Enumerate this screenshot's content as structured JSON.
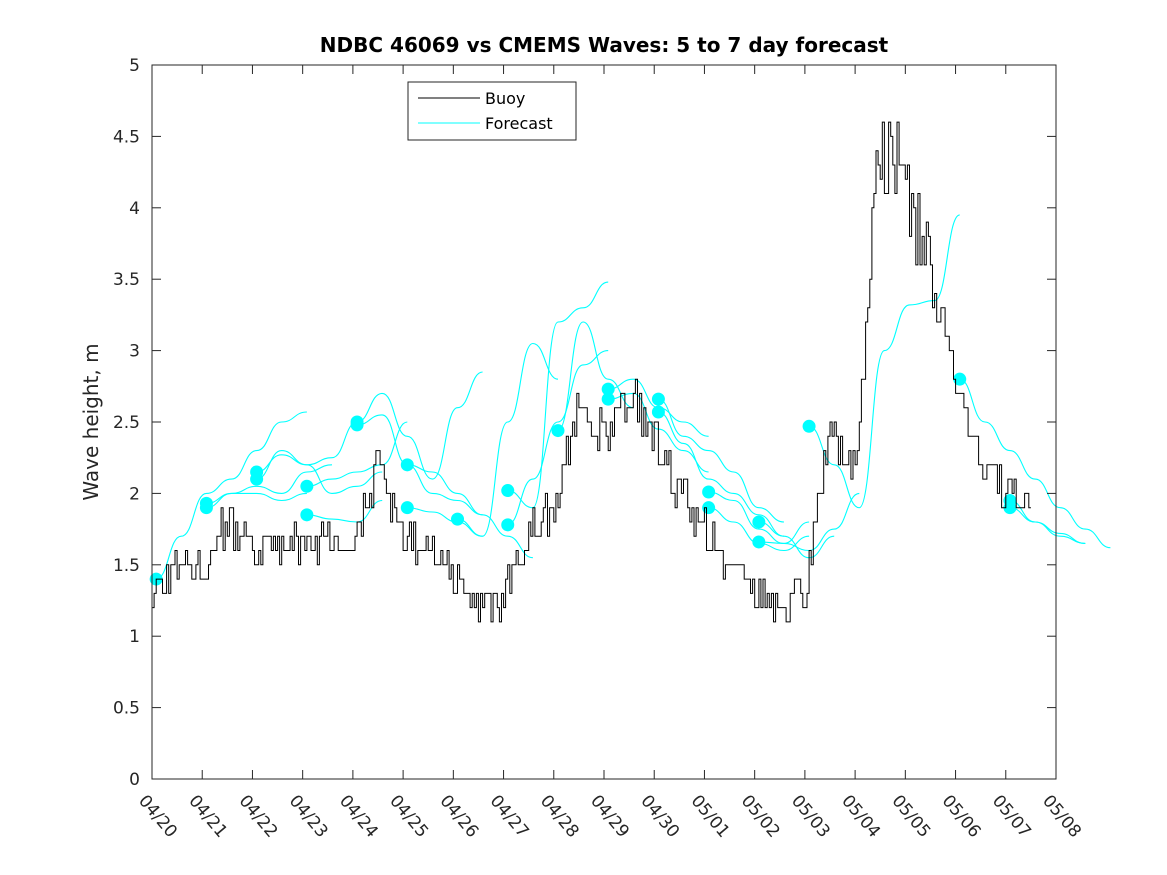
{
  "chart_data": {
    "type": "line",
    "title": "NDBC 46069 vs CMEMS Waves: 5 to 7 day forecast",
    "xlabel": "",
    "ylabel": "Wave height, m",
    "x_unit": "date (MM/DD)",
    "xlim": [
      "04/20",
      "05/08"
    ],
    "ylim": [
      0,
      5
    ],
    "x_ticks": [
      "04/20",
      "04/21",
      "04/22",
      "04/23",
      "04/24",
      "04/25",
      "04/26",
      "04/27",
      "04/28",
      "04/29",
      "04/30",
      "05/01",
      "05/02",
      "05/03",
      "05/04",
      "05/05",
      "05/06",
      "05/07",
      "05/08"
    ],
    "y_ticks": [
      "0",
      "0.5",
      "1",
      "1.5",
      "2",
      "2.5",
      "3",
      "3.5",
      "4",
      "4.5",
      "5"
    ],
    "grid": false,
    "legend": {
      "placement": "top-left",
      "entries": [
        "Buoy",
        "Forecast"
      ]
    },
    "colors": {
      "buoy": "#000000",
      "forecast": "#00ffff"
    },
    "series": [
      {
        "name": "Buoy",
        "x": [
          "04/20 00:00",
          "04/20 12:00",
          "04/21 00:00",
          "04/21 12:00",
          "04/22 00:00",
          "04/22 12:00",
          "04/23 00:00",
          "04/23 12:00",
          "04/24 00:00",
          "04/24 12:00",
          "04/25 00:00",
          "04/25 12:00",
          "04/26 00:00",
          "04/26 12:00",
          "04/27 00:00",
          "04/27 12:00",
          "04/28 00:00",
          "04/28 12:00",
          "04/29 00:00",
          "04/29 12:00",
          "04/30 00:00",
          "04/30 12:00",
          "05/01 00:00",
          "05/01 12:00",
          "05/02 00:00",
          "05/02 12:00",
          "05/03 00:00",
          "05/03 12:00",
          "05/04 00:00",
          "05/04 12:00",
          "05/05 00:00",
          "05/05 12:00",
          "05/06 00:00",
          "05/06 12:00",
          "05/07 00:00",
          "05/07 12:00"
        ],
        "y": [
          1.3,
          1.5,
          1.5,
          1.8,
          1.6,
          1.6,
          1.65,
          1.7,
          1.7,
          2.2,
          1.7,
          1.6,
          1.4,
          1.2,
          1.3,
          1.7,
          1.9,
          2.7,
          2.4,
          2.7,
          2.4,
          2.0,
          1.8,
          1.5,
          1.3,
          1.2,
          1.3,
          2.5,
          2.1,
          4.5,
          4.2,
          3.5,
          2.8,
          2.2,
          2.0,
          1.9
        ]
      },
      {
        "name": "Forecast",
        "runs": [
          {
            "start": "04/20 02:00",
            "y": [
              1.4,
              1.7,
              2.0,
              2.1,
              2.3,
              2.5,
              2.57
            ]
          },
          {
            "start": "04/21 02:00",
            "y": [
              1.9,
              2.0,
              2.05,
              2.0,
              2.15,
              2.2
            ]
          },
          {
            "start": "04/21 02:00",
            "y": [
              1.93,
              2.0,
              2.0,
              1.95,
              2.0
            ]
          },
          {
            "start": "04/22 02:00",
            "y": [
              2.1,
              2.3,
              2.2,
              2.0,
              2.05,
              2.15
            ]
          },
          {
            "start": "04/22 02:00",
            "y": [
              2.15,
              2.27,
              2.2,
              2.25,
              2.5
            ]
          },
          {
            "start": "04/23 02:00",
            "y": [
              2.05,
              2.1,
              2.15,
              2.2,
              2.5
            ]
          },
          {
            "start": "04/23 02:00",
            "y": [
              1.85,
              1.82,
              1.8,
              1.95
            ]
          },
          {
            "start": "04/24 02:00",
            "y": [
              2.5,
              2.7,
              2.4,
              2.1,
              2.6,
              2.85
            ]
          },
          {
            "start": "04/24 02:00",
            "y": [
              2.48,
              2.55,
              2.2,
              2.0,
              1.95,
              1.85
            ]
          },
          {
            "start": "04/25 02:00",
            "y": [
              2.2,
              2.15,
              2.0,
              1.85,
              1.7,
              1.55
            ]
          },
          {
            "start": "04/25 02:00",
            "y": [
              1.9,
              1.87,
              1.8,
              1.7
            ]
          },
          {
            "start": "04/26 02:00",
            "y": [
              1.82,
              1.7,
              2.5,
              3.05,
              2.8
            ]
          },
          {
            "start": "04/27 02:00",
            "y": [
              2.02,
              1.9,
              3.2,
              3.3,
              3.48
            ]
          },
          {
            "start": "04/27 02:00",
            "y": [
              1.78,
              2.1,
              2.5,
              2.9,
              3.0
            ]
          },
          {
            "start": "04/28 02:00",
            "y": [
              2.44,
              3.2,
              2.8,
              2.6
            ]
          },
          {
            "start": "04/29 02:00",
            "y": [
              2.73,
              2.8,
              2.6,
              2.5,
              2.4
            ]
          },
          {
            "start": "04/29 02:00",
            "y": [
              2.66,
              2.7,
              2.45,
              2.3,
              2.15
            ]
          },
          {
            "start": "04/30 02:00",
            "y": [
              2.66,
              2.4,
              2.3,
              2.15,
              1.9,
              1.8
            ]
          },
          {
            "start": "04/30 02:00",
            "y": [
              2.57,
              2.35,
              2.1,
              2.0,
              1.85,
              1.7
            ]
          },
          {
            "start": "05/01 02:00",
            "y": [
              2.01,
              1.95,
              1.75,
              1.65,
              1.8
            ]
          },
          {
            "start": "05/01 02:00",
            "y": [
              1.9,
              1.8,
              1.65,
              1.6,
              1.7
            ]
          },
          {
            "start": "05/02 02:00",
            "y": [
              1.8,
              1.7,
              1.55,
              1.7
            ]
          },
          {
            "start": "05/02 02:00",
            "y": [
              1.66,
              1.65,
              1.6,
              1.75,
              2.0
            ]
          },
          {
            "start": "05/03 02:00",
            "y": [
              2.47,
              2.2,
              1.9,
              3.0,
              3.32,
              3.35,
              3.95
            ]
          },
          {
            "start": "05/06 02:00",
            "y": [
              2.8,
              2.5,
              2.3,
              2.1,
              1.9,
              1.75,
              1.62
            ]
          },
          {
            "start": "05/07 02:00",
            "y": [
              1.95,
              1.8,
              1.7,
              1.65
            ]
          },
          {
            "start": "05/07 02:00",
            "y": [
              1.9,
              1.8,
              1.72,
              1.65
            ]
          }
        ]
      }
    ]
  }
}
